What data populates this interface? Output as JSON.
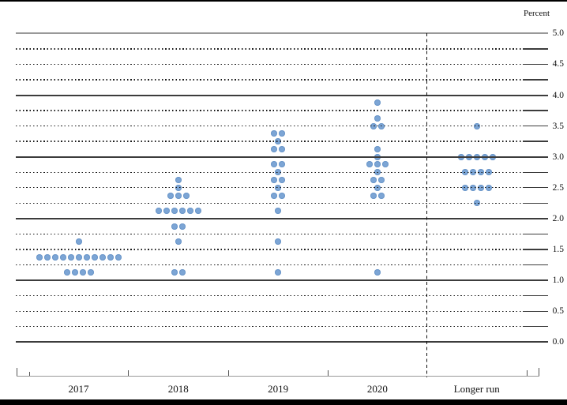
{
  "page": {
    "percent_axis_title": "Percent"
  },
  "colors": {
    "dot_fill": "#7ca5d5",
    "dot_edge": "#6c97c9",
    "grid_solid": "#3c3c3c",
    "grid_top": "#999999",
    "grid_dotted": "#1c1c1c",
    "axis_line": "#999999",
    "text": "#111111"
  },
  "chart_data": {
    "type": "scatter",
    "subtype": "fomc-dot-plot",
    "title": "",
    "xlabel": "",
    "ylabel": "Percent",
    "ylim": [
      0.0,
      5.0
    ],
    "y_label_step": 0.5,
    "y_grid_step": 0.25,
    "grid": "solid lines at whole percents, dotted lines at quarter percents, dashed vertical separator before Longer run",
    "legend_position": "none",
    "y_tick_labels": [
      "5.0",
      "4.5",
      "4.0",
      "3.5",
      "3.0",
      "2.5",
      "2.0",
      "1.5",
      "1.0",
      "0.5",
      "0.0"
    ],
    "categories": [
      "2017",
      "2018",
      "2019",
      "2020",
      "Longer run"
    ],
    "series": [
      {
        "category": "2017",
        "dots": [
          {
            "value": 1.625,
            "count": 1
          },
          {
            "value": 1.375,
            "count": 11
          },
          {
            "value": 1.125,
            "count": 4
          }
        ]
      },
      {
        "category": "2018",
        "dots": [
          {
            "value": 2.625,
            "count": 1
          },
          {
            "value": 2.5,
            "count": 1
          },
          {
            "value": 2.375,
            "count": 3
          },
          {
            "value": 2.125,
            "count": 6
          },
          {
            "value": 1.875,
            "count": 2
          },
          {
            "value": 1.625,
            "count": 1
          },
          {
            "value": 1.125,
            "count": 2
          }
        ]
      },
      {
        "category": "2019",
        "dots": [
          {
            "value": 3.375,
            "count": 2
          },
          {
            "value": 3.25,
            "count": 1
          },
          {
            "value": 3.125,
            "count": 2
          },
          {
            "value": 2.875,
            "count": 2
          },
          {
            "value": 2.75,
            "count": 1
          },
          {
            "value": 2.625,
            "count": 2
          },
          {
            "value": 2.5,
            "count": 1
          },
          {
            "value": 2.375,
            "count": 2
          },
          {
            "value": 2.125,
            "count": 1
          },
          {
            "value": 1.625,
            "count": 1
          },
          {
            "value": 1.125,
            "count": 1
          }
        ]
      },
      {
        "category": "2020",
        "dots": [
          {
            "value": 3.875,
            "count": 1
          },
          {
            "value": 3.625,
            "count": 1
          },
          {
            "value": 3.5,
            "count": 2
          },
          {
            "value": 3.125,
            "count": 1
          },
          {
            "value": 3.0,
            "count": 1
          },
          {
            "value": 2.875,
            "count": 3
          },
          {
            "value": 2.75,
            "count": 1
          },
          {
            "value": 2.625,
            "count": 2
          },
          {
            "value": 2.5,
            "count": 1
          },
          {
            "value": 2.375,
            "count": 2
          },
          {
            "value": 1.125,
            "count": 1
          }
        ]
      },
      {
        "category": "Longer run",
        "dots": [
          {
            "value": 3.5,
            "count": 1
          },
          {
            "value": 3.0,
            "count": 5
          },
          {
            "value": 2.75,
            "count": 4
          },
          {
            "value": 2.5,
            "count": 4
          },
          {
            "value": 2.25,
            "count": 1
          }
        ]
      }
    ]
  }
}
